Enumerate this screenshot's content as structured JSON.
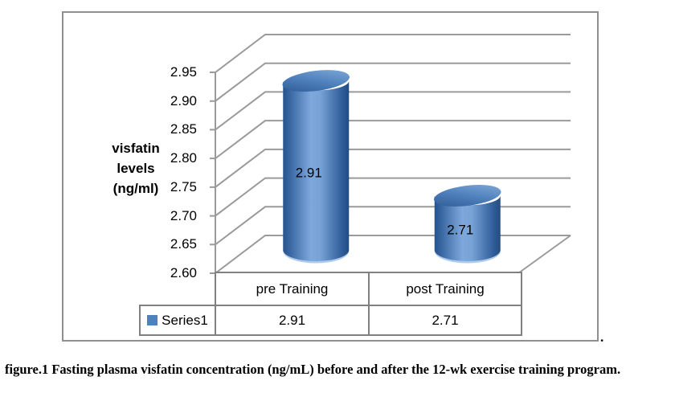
{
  "figure": {
    "caption": "figure.1 Fasting plasma visfatin concentration (ng/mL) before and after the 12-wk exercise training program.",
    "stray_period": "."
  },
  "chart_data": {
    "type": "bar",
    "subtype": "3d-cylinder",
    "title": "",
    "categories": [
      "pre Training",
      "post Training"
    ],
    "series": [
      {
        "name": "Series1",
        "values": [
          2.91,
          2.71
        ]
      }
    ],
    "value_labels": [
      "2.91",
      "2.71"
    ],
    "ylabel_lines": [
      "visfatin",
      "levels",
      "(ng/ml)"
    ],
    "xlabel": "",
    "yticks": [
      "2.95",
      "2.90",
      "2.85",
      "2.80",
      "2.75",
      "2.70",
      "2.65",
      "2.60"
    ],
    "ylim": [
      2.6,
      2.95
    ],
    "ytick_step": 0.05,
    "grid": true,
    "legend_position": "table-row-left",
    "colors": {
      "bar_dark": "#27538c",
      "bar_mid": "#4f81bd",
      "bar_light": "#7ea8dc",
      "bar_cap_light": "#aecbe9",
      "grid": "#9a9a9a",
      "frame_border": "#8f8f8f",
      "table_border": "#808080",
      "text": "#000000"
    }
  }
}
